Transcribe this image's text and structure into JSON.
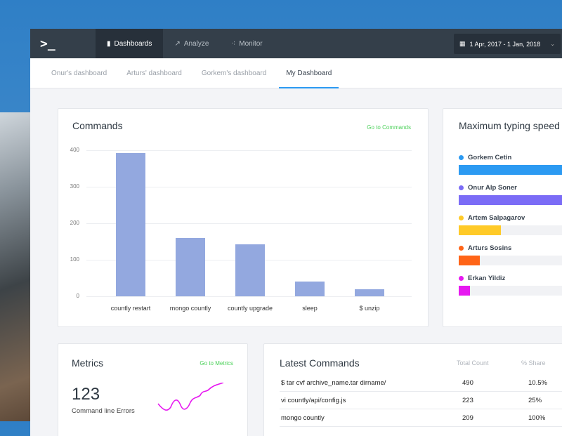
{
  "nav": {
    "logo": ">_",
    "items": [
      {
        "label": "Dashboards",
        "icon": "bar-chart-icon",
        "active": true
      },
      {
        "label": "Analyze",
        "icon": "trend-icon"
      },
      {
        "label": "Monitor",
        "icon": "nodes-icon"
      }
    ],
    "date_range": "1 Apr, 2017 - 1 Jan, 2018"
  },
  "tabs": [
    {
      "label": "Onur's dashboard"
    },
    {
      "label": "Arturs' dashboard"
    },
    {
      "label": "Gorkem's dashboard"
    },
    {
      "label": "My Dashboard",
      "active": true
    }
  ],
  "commands": {
    "title": "Commands",
    "link": "Go to Commands"
  },
  "chart_data": {
    "type": "bar",
    "categories": [
      "countly restart",
      "mongo countly",
      "countly upgrade",
      "sleep",
      "$ unzip"
    ],
    "values": [
      392,
      160,
      143,
      40,
      20
    ],
    "yticks": [
      0,
      100,
      200,
      300,
      400
    ],
    "ylim": [
      0,
      400
    ],
    "grid": true,
    "color": "#93a8df"
  },
  "typing": {
    "title": "Maximum typing speed",
    "people": [
      {
        "name": "Gorkem Cetin",
        "color": "#2c9af2",
        "level": 100
      },
      {
        "name": "Onur Alp Soner",
        "color": "#7b6cf6",
        "level": 95
      },
      {
        "name": "Artem Salpagarov",
        "color": "#ffca28",
        "level": 30
      },
      {
        "name": "Arturs Sosins",
        "color": "#ff6417",
        "level": 15
      },
      {
        "name": "Erkan Yildiz",
        "color": "#e619f0",
        "level": 8
      }
    ]
  },
  "metrics": {
    "title": "Metrics",
    "link": "Go to Metrics",
    "value": "123",
    "label": "Command line Errors",
    "sparkline_color": "#e619f0"
  },
  "latest": {
    "title": "Latest Commands",
    "headers": [
      "Total Count",
      "% Share"
    ],
    "rows": [
      {
        "cmd": "$ tar cvf archive_name.tar dirname/",
        "count": "490",
        "share": "10.5%"
      },
      {
        "cmd": "vi countly/api/config.js",
        "count": "223",
        "share": "25%"
      },
      {
        "cmd": "mongo countly",
        "count": "209",
        "share": "100%"
      }
    ]
  }
}
